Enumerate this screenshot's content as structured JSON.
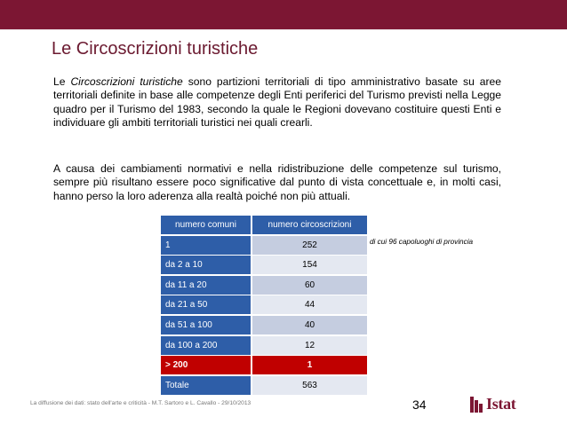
{
  "slide": {
    "title": "Le Circoscrizioni turistiche",
    "paragraph1": {
      "prefix": "Le ",
      "emphasis": "Circoscrizioni turistiche",
      "rest": " sono partizioni territoriali di tipo amministrativo basate su aree territoriali definite in base alle competenze degli Enti periferici del Turismo previsti nella Legge quadro per il Turismo del 1983, secondo la quale le Regioni dovevano costituire questi Enti e individuare gli ambiti territoriali turistici nei quali crearli."
    },
    "paragraph2": "A causa dei cambiamenti normativi e nella ridistribuzione delle competenze sul turismo, sempre più risultano essere poco significative dal punto di vista concettuale e, in molti casi, hanno perso la loro aderenza alla realtà poiché non più attuali."
  },
  "table": {
    "headers": [
      "numero comuni",
      "numero circoscrizioni"
    ],
    "rows": [
      {
        "label": "1",
        "value": "252"
      },
      {
        "label": "da 2 a 10",
        "value": "154"
      },
      {
        "label": "da 11 a 20",
        "value": "60"
      },
      {
        "label": "da 21 a 50",
        "value": "44"
      },
      {
        "label": "da 51 a 100",
        "value": "40"
      },
      {
        "label": "da 100 a 200",
        "value": "12"
      },
      {
        "label": "> 200",
        "value": "1"
      },
      {
        "label": "Totale",
        "value": "563"
      }
    ],
    "note": "di cui 96 capoluoghi di provincia"
  },
  "footer": {
    "text": "La diffusione dei dati: stato dell'arte e criticità - M.T. Sartoro e L. Cavallo - 29/10/2013",
    "page_number": "34"
  },
  "logo": {
    "text": "Istat"
  },
  "colors": {
    "brand": "#7c1633",
    "table_header": "#2e5ea8",
    "highlight": "#c00000"
  }
}
